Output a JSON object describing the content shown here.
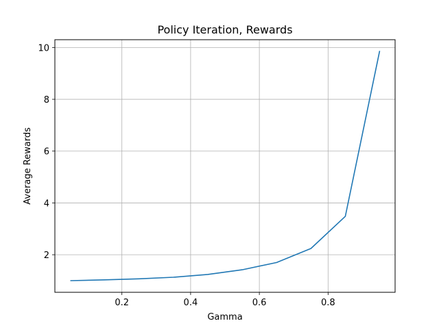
{
  "chart_data": {
    "type": "line",
    "title": "Policy Iteration, Rewards",
    "xlabel": "Gamma",
    "ylabel": "Average Rewards",
    "xlim": [
      0.005,
      0.995
    ],
    "ylim": [
      0.55,
      10.3
    ],
    "xticks": [
      0.2,
      0.4,
      0.6,
      0.8
    ],
    "xtick_labels": [
      "0.2",
      "0.4",
      "0.6",
      "0.8"
    ],
    "yticks": [
      2,
      4,
      6,
      8,
      10
    ],
    "ytick_labels": [
      "2",
      "4",
      "6",
      "8",
      "10"
    ],
    "grid": true,
    "series": [
      {
        "color": "#1f77b4",
        "x": [
          0.05,
          0.15,
          0.25,
          0.35,
          0.45,
          0.55,
          0.65,
          0.75,
          0.85,
          0.95
        ],
        "y": [
          1.0,
          1.03,
          1.07,
          1.13,
          1.24,
          1.42,
          1.7,
          2.24,
          3.48,
          9.87
        ]
      }
    ]
  }
}
